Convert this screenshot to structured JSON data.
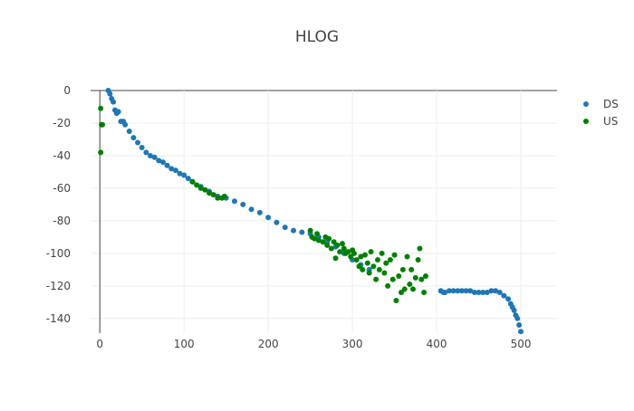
{
  "chart_data": {
    "type": "scatter",
    "title": "HLOG",
    "series": [
      {
        "name": "DS",
        "color": "#1f77b4",
        "x": [
          10,
          12,
          14,
          16,
          18,
          20,
          22,
          25,
          28,
          30,
          35,
          40,
          45,
          50,
          55,
          60,
          65,
          70,
          75,
          80,
          85,
          90,
          95,
          100,
          105,
          110,
          120,
          130,
          140,
          150,
          160,
          170,
          180,
          190,
          200,
          210,
          220,
          230,
          240,
          250,
          260,
          270,
          280,
          290,
          300,
          310,
          320,
          405,
          408,
          410,
          415,
          420,
          425,
          430,
          435,
          440,
          445,
          450,
          455,
          460,
          465,
          470,
          475,
          480,
          485,
          488,
          490,
          492,
          494,
          496,
          498,
          500
        ],
        "values": [
          0,
          -2,
          -5,
          -7,
          -12,
          -14,
          -13,
          -19,
          -19,
          -21,
          -25,
          -29,
          -32,
          -35,
          -38,
          -40,
          -41,
          -43,
          -44,
          -46,
          -48,
          -49,
          -51,
          -52,
          -54,
          -56,
          -59,
          -62,
          -65,
          -66,
          -68,
          -70,
          -73,
          -75,
          -78,
          -81,
          -84,
          -86,
          -87,
          -88,
          -90,
          -93,
          -96,
          -100,
          -104,
          -107,
          -110,
          -123,
          -124,
          -124,
          -123,
          -123,
          -123,
          -123,
          -123,
          -123,
          -124,
          -124,
          -124,
          -124,
          -123,
          -123,
          -124,
          -126,
          -128,
          -131,
          -133,
          -135,
          -138,
          -140,
          -144,
          -148
        ]
      },
      {
        "name": "US",
        "color": "#008000",
        "x": [
          1,
          2,
          3,
          1,
          110,
          115,
          120,
          125,
          130,
          135,
          140,
          145,
          148,
          250,
          252,
          255,
          258,
          260,
          265,
          268,
          270,
          272,
          275,
          278,
          280,
          282,
          285,
          288,
          290,
          292,
          295,
          298,
          300,
          302,
          305,
          308,
          310,
          312,
          315,
          318,
          320,
          322,
          325,
          328,
          330,
          332,
          335,
          338,
          340,
          342,
          345,
          348,
          350,
          352,
          355,
          358,
          360,
          362,
          365,
          368,
          370,
          372,
          375,
          378,
          380,
          382,
          385,
          387
        ],
        "values": [
          -11,
          -21,
          -21,
          -38,
          -56,
          -58,
          -60,
          -61,
          -63,
          -64,
          -66,
          -66,
          -65,
          -86,
          -90,
          -91,
          -88,
          -92,
          -93,
          -90,
          -95,
          -91,
          -97,
          -93,
          -103,
          -95,
          -99,
          -94,
          -97,
          -100,
          -99,
          -102,
          -98,
          -100,
          -104,
          -108,
          -102,
          -110,
          -101,
          -106,
          -112,
          -99,
          -108,
          -116,
          -104,
          -110,
          -100,
          -112,
          -106,
          -120,
          -104,
          -116,
          -101,
          -129,
          -114,
          -124,
          -110,
          -122,
          -102,
          -119,
          -110,
          -122,
          -115,
          -104,
          -97,
          -116,
          -124,
          -114
        ]
      }
    ],
    "xlim": [
      -11,
      543
    ],
    "xticks": [
      0,
      100,
      200,
      300,
      400,
      500
    ],
    "ylim": [
      -149,
      0
    ],
    "yticks": [
      0,
      -20,
      -40,
      -60,
      -80,
      -100,
      -120,
      -140
    ],
    "grid": true,
    "legend": "right"
  }
}
